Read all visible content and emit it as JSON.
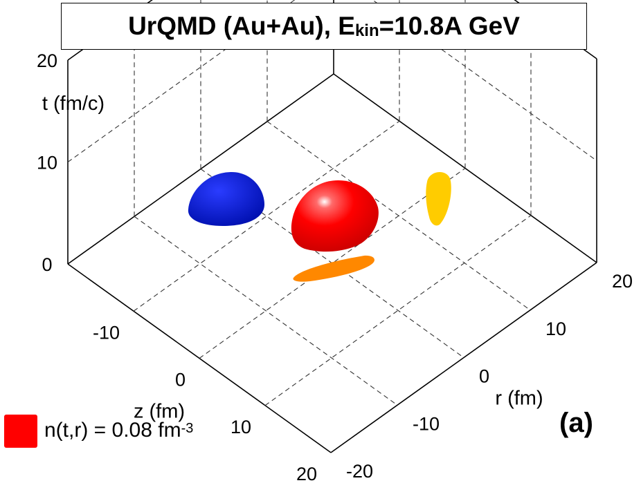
{
  "title": {
    "main": "UrQMD (Au+Au), E",
    "sub": "kin",
    "tail": "=10.8A GeV"
  },
  "legend": {
    "color": "#ff0000",
    "text": "n(t,r) = 0.08 fm",
    "sup": "-3"
  },
  "panel_label": "(a)",
  "chart_data": {
    "type": "scatter",
    "plot_kind": "3d-isosurface",
    "title": "UrQMD (Au+Au), Ekin=10.8A GeV",
    "axes": {
      "t": {
        "label": "t (fm/c)",
        "range": [
          0,
          20
        ],
        "ticks": [
          0,
          10,
          20
        ]
      },
      "z": {
        "label": "z (fm)",
        "range": [
          -20,
          20
        ],
        "ticks": [
          -10,
          0,
          10,
          20
        ]
      },
      "r": {
        "label": "r (fm)",
        "range": [
          -20,
          20
        ],
        "ticks": [
          -20,
          -10,
          0,
          10,
          20
        ]
      }
    },
    "grid": true,
    "isosurface": {
      "quantity": "n(t,r)",
      "value": 0.08,
      "unit": "fm^-3",
      "color": "#ff0000",
      "center": {
        "z": 0,
        "r": 0,
        "t": 4
      }
    },
    "projections": [
      {
        "plane": "t-r (back-left wall)",
        "color": "#0018c0"
      },
      {
        "plane": "t-z (back-right wall)",
        "color": "#ffcc00"
      },
      {
        "plane": "z-r (floor)",
        "color": "#ff8800"
      }
    ]
  }
}
